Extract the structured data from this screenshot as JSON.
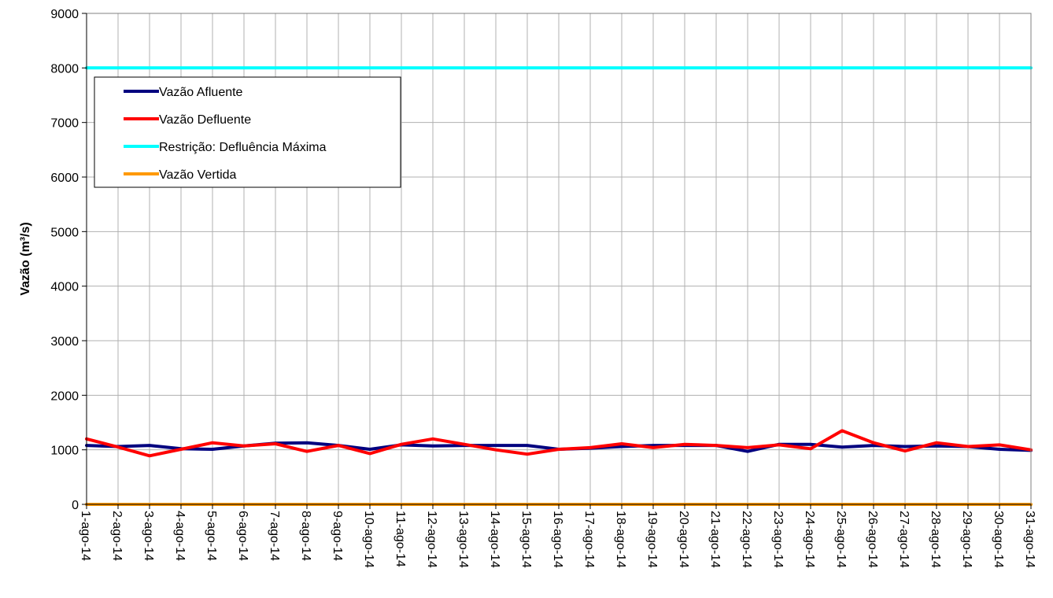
{
  "chart_data": {
    "type": "line",
    "title": "",
    "xlabel": "",
    "ylabel": "Vazão (m³/s)",
    "ylim": [
      0,
      9000
    ],
    "yticks": [
      "0",
      "1000",
      "2000",
      "3000",
      "4000",
      "5000",
      "6000",
      "7000",
      "8000",
      "9000"
    ],
    "grid": true,
    "legend_position": "top-left",
    "categories": [
      "1-ago-14",
      "2-ago-14",
      "3-ago-14",
      "4-ago-14",
      "5-ago-14",
      "6-ago-14",
      "7-ago-14",
      "8-ago-14",
      "9-ago-14",
      "10-ago-14",
      "11-ago-14",
      "12-ago-14",
      "13-ago-14",
      "14-ago-14",
      "15-ago-14",
      "16-ago-14",
      "17-ago-14",
      "18-ago-14",
      "19-ago-14",
      "20-ago-14",
      "21-ago-14",
      "22-ago-14",
      "23-ago-14",
      "24-ago-14",
      "25-ago-14",
      "26-ago-14",
      "27-ago-14",
      "28-ago-14",
      "29-ago-14",
      "30-ago-14",
      "31-ago-14"
    ],
    "series": [
      {
        "name": "Vazão Afluente",
        "color": "#00007f",
        "values": [
          1080,
          1060,
          1080,
          1020,
          1010,
          1070,
          1120,
          1130,
          1080,
          1010,
          1090,
          1070,
          1080,
          1080,
          1080,
          1010,
          1030,
          1060,
          1080,
          1080,
          1080,
          970,
          1100,
          1100,
          1050,
          1080,
          1060,
          1070,
          1060,
          1010,
          990
        ]
      },
      {
        "name": "Vazão Defluente",
        "color": "#ff0000",
        "values": [
          1200,
          1050,
          890,
          1010,
          1130,
          1070,
          1110,
          970,
          1080,
          930,
          1100,
          1200,
          1100,
          1000,
          920,
          1010,
          1040,
          1110,
          1040,
          1100,
          1080,
          1040,
          1090,
          1020,
          1350,
          1130,
          980,
          1130,
          1060,
          1090,
          1000
        ]
      },
      {
        "name": "Restrição: Defluência Máxima",
        "color": "#00ffff",
        "values": [
          8000,
          8000,
          8000,
          8000,
          8000,
          8000,
          8000,
          8000,
          8000,
          8000,
          8000,
          8000,
          8000,
          8000,
          8000,
          8000,
          8000,
          8000,
          8000,
          8000,
          8000,
          8000,
          8000,
          8000,
          8000,
          8000,
          8000,
          8000,
          8000,
          8000,
          8000
        ]
      },
      {
        "name": "Vazão Vertida",
        "color": "#ff9900",
        "values": [
          0,
          0,
          0,
          0,
          0,
          0,
          0,
          0,
          0,
          0,
          0,
          0,
          0,
          0,
          0,
          0,
          0,
          0,
          0,
          0,
          0,
          0,
          0,
          0,
          0,
          0,
          0,
          0,
          0,
          0,
          0
        ]
      }
    ]
  }
}
